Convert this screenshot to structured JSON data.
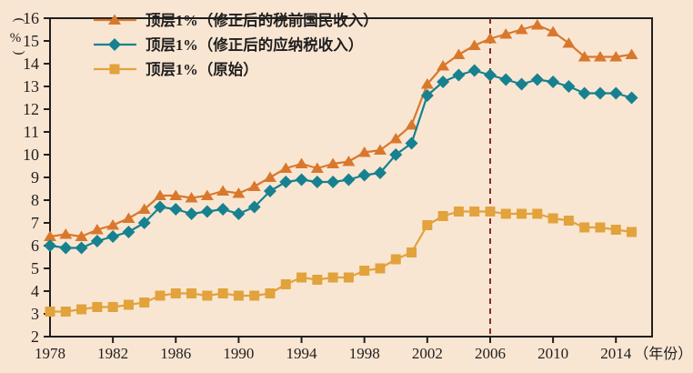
{
  "colors": {
    "background": "#f9e6d2",
    "axis": "#1f1f1f",
    "text": "#1f1f1f",
    "reference_line": "#7b2d26",
    "series_pretax": "#d9782d",
    "series_taxable": "#17818f",
    "series_raw": "#e2a23c"
  },
  "chart_data": {
    "type": "line",
    "title": "",
    "ylabel": "(%)",
    "xlabel": "（年份）",
    "grid": false,
    "legend_position": "top-left",
    "ylim": [
      2,
      16
    ],
    "xlim": [
      1978,
      2016.3
    ],
    "y_ticks": [
      2,
      3,
      4,
      5,
      6,
      7,
      8,
      9,
      10,
      11,
      12,
      13,
      14,
      15,
      16
    ],
    "x_tick_labels": [
      1978,
      1982,
      1986,
      1990,
      1994,
      1998,
      2002,
      2006,
      2010,
      2014
    ],
    "x": [
      1978,
      1979,
      1980,
      1981,
      1982,
      1983,
      1984,
      1985,
      1986,
      1987,
      1988,
      1989,
      1990,
      1991,
      1992,
      1993,
      1994,
      1995,
      1996,
      1997,
      1998,
      1999,
      2000,
      2001,
      2002,
      2003,
      2004,
      2005,
      2006,
      2007,
      2008,
      2009,
      2010,
      2011,
      2012,
      2013,
      2014,
      2015
    ],
    "reference_line": {
      "x": 2006,
      "style": "dashed"
    },
    "series": [
      {
        "name": "顶层1%（修正后的税前国民收入）",
        "marker": "triangle",
        "color_key": "series_pretax",
        "values": [
          6.4,
          6.5,
          6.4,
          6.7,
          6.9,
          7.2,
          7.6,
          8.2,
          8.2,
          8.1,
          8.2,
          8.4,
          8.3,
          8.6,
          9.0,
          9.4,
          9.6,
          9.4,
          9.6,
          9.7,
          10.1,
          10.2,
          10.7,
          11.3,
          13.1,
          13.9,
          14.4,
          14.8,
          15.1,
          15.3,
          15.5,
          15.7,
          15.4,
          14.9,
          14.3,
          14.3,
          14.3,
          14.4
        ]
      },
      {
        "name": "顶层1%（修正后的应纳税收入）",
        "marker": "diamond",
        "color_key": "series_taxable",
        "values": [
          6.0,
          5.9,
          5.9,
          6.2,
          6.4,
          6.6,
          7.0,
          7.7,
          7.6,
          7.4,
          7.5,
          7.6,
          7.4,
          7.7,
          8.4,
          8.8,
          8.9,
          8.8,
          8.8,
          8.9,
          9.1,
          9.2,
          10.0,
          10.5,
          12.6,
          13.2,
          13.5,
          13.7,
          13.5,
          13.3,
          13.1,
          13.3,
          13.2,
          13.0,
          12.7,
          12.7,
          12.7,
          12.5
        ]
      },
      {
        "name": "顶层1%（原始）",
        "marker": "square",
        "color_key": "series_raw",
        "values": [
          3.1,
          3.1,
          3.2,
          3.3,
          3.3,
          3.4,
          3.5,
          3.8,
          3.9,
          3.9,
          3.8,
          3.9,
          3.8,
          3.8,
          3.9,
          4.3,
          4.6,
          4.5,
          4.6,
          4.6,
          4.9,
          5.0,
          5.4,
          5.7,
          6.9,
          7.3,
          7.5,
          7.5,
          7.5,
          7.4,
          7.4,
          7.4,
          7.2,
          7.1,
          6.8,
          6.8,
          6.7,
          6.6
        ]
      }
    ]
  }
}
